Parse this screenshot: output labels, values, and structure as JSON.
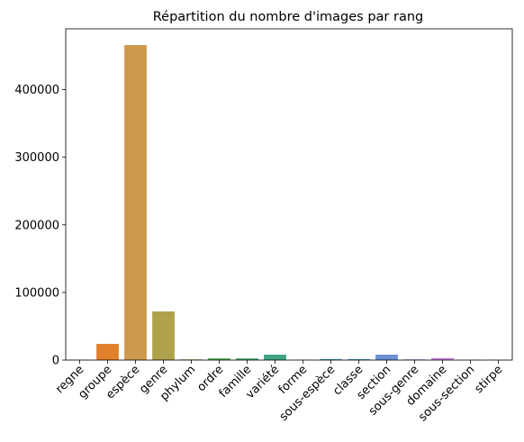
{
  "chart_data": {
    "type": "bar",
    "title": "Répartition du nombre d'images par rang",
    "xlabel": "",
    "ylabel": "",
    "categories": [
      "regne",
      "groupe",
      "espèce",
      "genre",
      "phylum",
      "ordre",
      "famille",
      "variété",
      "forme",
      "sous-espèce",
      "classe",
      "section",
      "sous-genre",
      "domaine",
      "sous-section",
      "stirpe"
    ],
    "values": [
      400,
      24000,
      466000,
      72000,
      1000,
      2500,
      2500,
      8000,
      300,
      1500,
      1500,
      8000,
      1000,
      3000,
      300,
      300
    ],
    "colors": [
      "#3274a1",
      "#e1812c",
      "#cc9a4c",
      "#b0a24c",
      "#7ab04c",
      "#4ca64c",
      "#4ca66f",
      "#3ea581",
      "#3ea59a",
      "#3e9fad",
      "#4a95c8",
      "#6b8fd4",
      "#9b8ad9",
      "#c67fd9",
      "#d973c8",
      "#e273a5"
    ],
    "ylim": [
      0,
      490000
    ],
    "yticks": [
      0,
      100000,
      200000,
      300000,
      400000
    ],
    "grid": false,
    "legend": "none"
  }
}
